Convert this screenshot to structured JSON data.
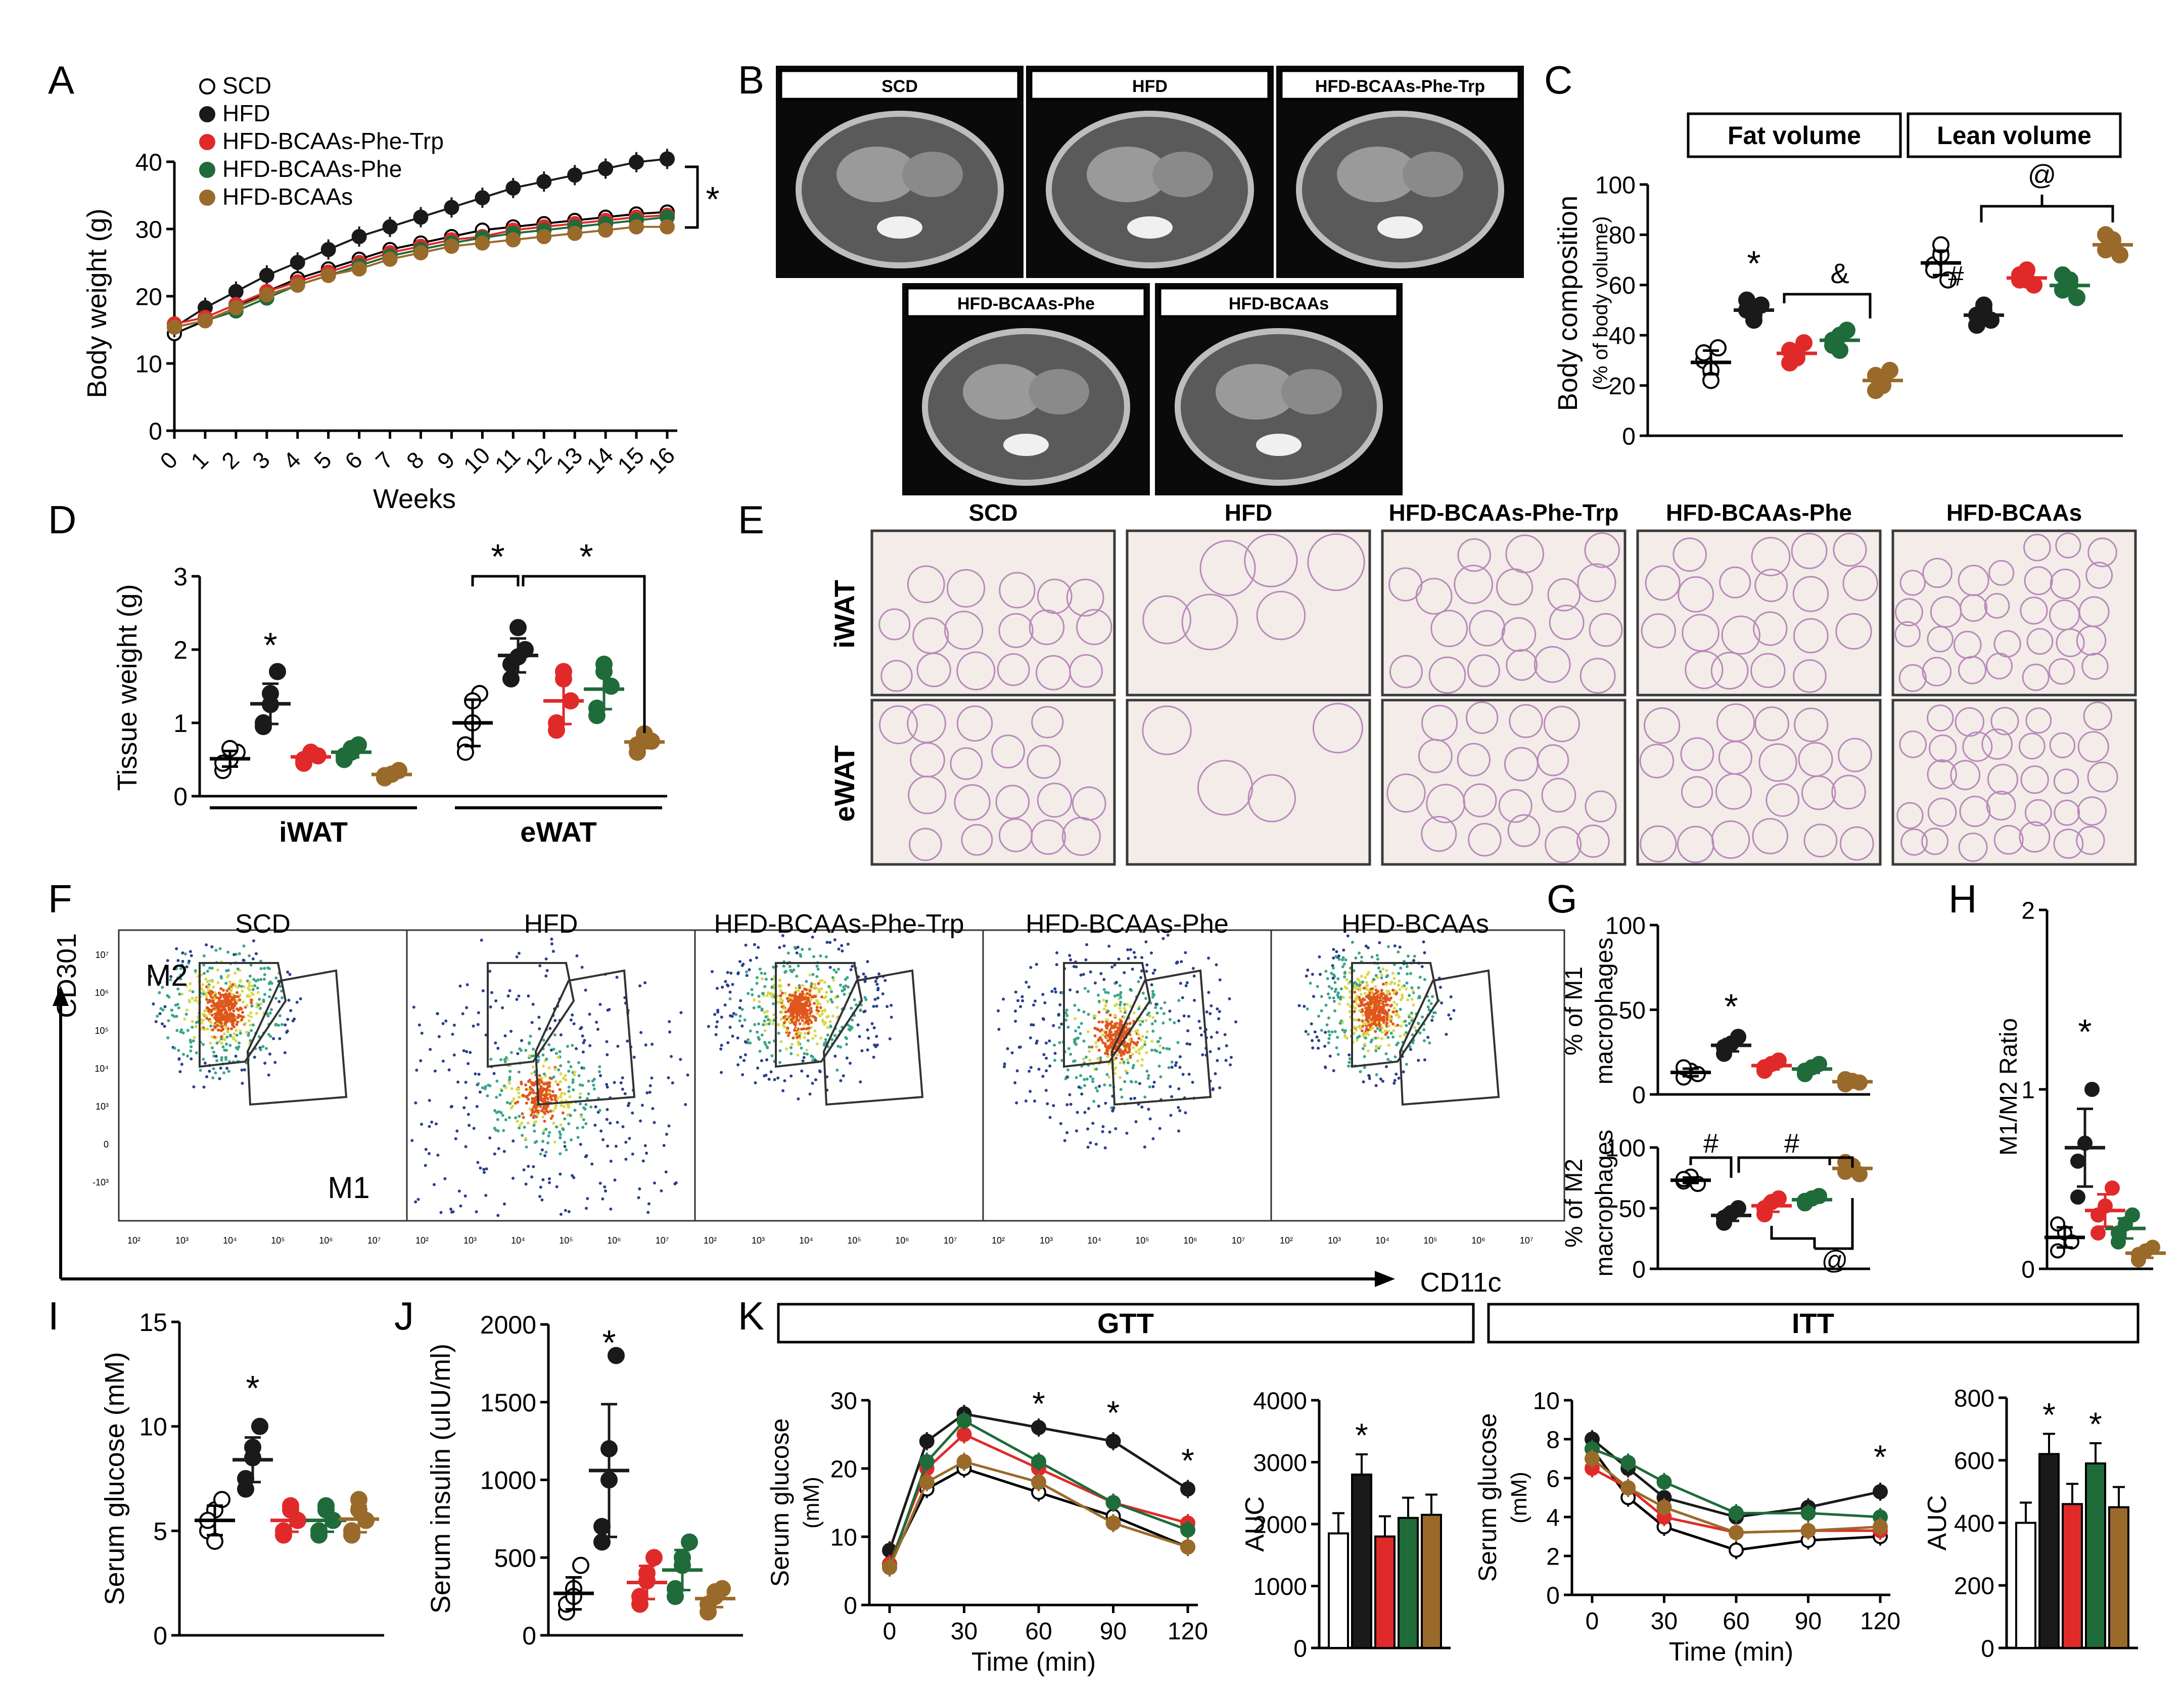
{
  "colors": {
    "SCD": "#ffffff",
    "HFD": "#1a1a1a",
    "PheTrp": "#e02a2a",
    "Phe": "#1f6b3a",
    "BCAAs": "#9a6a2a"
  },
  "panels": {
    "A": {
      "letter": "A",
      "ylabel": "Body weight (g)",
      "xlabel": "Weeks",
      "legend": [
        "SCD",
        "HFD",
        "HFD-BCAAs-Phe-Trp",
        "HFD-BCAAs-Phe",
        "HFD-BCAAs"
      ],
      "sig": "*"
    },
    "B": {
      "letter": "B",
      "labels": [
        "SCD",
        "HFD",
        "HFD-BCAAs-Phe-Trp",
        "HFD-BCAAs-Phe",
        "HFD-BCAAs"
      ]
    },
    "C": {
      "letter": "C",
      "ylabel": "Body composition",
      "ylabel2": "(% of body volume)",
      "boxes": [
        "Fat volume",
        "Lean volume"
      ],
      "marks": [
        "*",
        "&",
        "#",
        "@"
      ]
    },
    "D": {
      "letter": "D",
      "ylabel": "Tissue weight (g)",
      "groups": [
        "iWAT",
        "eWAT"
      ],
      "marks": [
        "*",
        "*",
        "*"
      ]
    },
    "E": {
      "letter": "E",
      "cols": [
        "SCD",
        "HFD",
        "HFD-BCAAs-Phe-Trp",
        "HFD-BCAAs-Phe",
        "HFD-BCAAs"
      ],
      "rows": [
        "iWAT",
        "eWAT"
      ]
    },
    "F": {
      "letter": "F",
      "titles": [
        "SCD",
        "HFD",
        "HFD-BCAAs-Phe-Trp",
        "HFD-BCAAs-Phe",
        "HFD-BCAAs"
      ],
      "yaxis": "CD301",
      "xaxis": "CD11c",
      "gate_m2": "M2",
      "gate_m1": "M1",
      "yticks": [
        "10⁷",
        "10⁶",
        "10⁵",
        "10⁴",
        "10³",
        "0",
        "-10³"
      ],
      "xticks": [
        "10²",
        "10³",
        "10⁴",
        "10⁵",
        "10⁶",
        "10⁷"
      ]
    },
    "G": {
      "letter": "G",
      "ylabel_top": "% of M1",
      "ylabel_top2": "macrophages",
      "ylabel_bot": "% of M2",
      "ylabel_bot2": "macrophages",
      "marks": [
        "*",
        "#",
        "#",
        "@"
      ]
    },
    "H": {
      "letter": "H",
      "ylabel": "M1/M2 Ratio",
      "mark": "*"
    },
    "I": {
      "letter": "I",
      "ylabel": "Serum glucose (mM)",
      "mark": "*"
    },
    "J": {
      "letter": "J",
      "ylabel": "Serum insulin (uIU/ml)",
      "mark": "*"
    },
    "K": {
      "letter": "K",
      "box_gtt": "GTT",
      "box_itt": "ITT",
      "ylabel": "Serum glucose",
      "ylabel2": "(mM)",
      "xlabel": "Time (min)",
      "auc": "AUC",
      "mark": "*"
    }
  },
  "chart_data": [
    {
      "id": "A",
      "type": "line",
      "title": "",
      "xlabel": "Weeks",
      "ylabel": "Body weight (g)",
      "xlim": [
        0,
        16
      ],
      "ylim": [
        0,
        40
      ],
      "x": [
        0,
        1,
        2,
        3,
        4,
        5,
        6,
        7,
        8,
        9,
        10,
        11,
        12,
        13,
        14,
        15,
        16
      ],
      "xticks": [
        "0",
        "1",
        "2",
        "3",
        "4",
        "5",
        "6",
        "7",
        "8",
        "9",
        "10",
        "11",
        "12",
        "13",
        "14",
        "15",
        "16"
      ],
      "yticks": [
        0,
        10,
        20,
        30,
        40
      ],
      "series": [
        {
          "name": "SCD",
          "values": [
            15,
            17,
            19,
            21.5,
            23.5,
            25,
            26.5,
            28,
            29,
            30,
            31,
            31.5,
            32,
            32.5,
            33,
            33.5,
            33.8
          ]
        },
        {
          "name": "HFD",
          "values": [
            16,
            19,
            21.5,
            24,
            26,
            28,
            30,
            31.5,
            33,
            34.5,
            36,
            37.5,
            38.5,
            39.5,
            40.5,
            41.5,
            42
          ]
        },
        {
          "name": "HFD-BCAAs-Phe-Trp",
          "values": [
            16.5,
            17.5,
            19.5,
            21.5,
            23,
            24.5,
            26,
            27.5,
            28.5,
            29.5,
            30,
            31,
            31.5,
            32,
            32.5,
            33,
            33.3
          ]
        },
        {
          "name": "HFD-BCAAs-Phe",
          "values": [
            16,
            17,
            18.5,
            20.5,
            22.5,
            24,
            25.5,
            27,
            28,
            29,
            29.8,
            30.5,
            31,
            31.5,
            32,
            32.5,
            33
          ]
        },
        {
          "name": "HFD-BCAAs",
          "values": [
            16,
            17,
            19,
            21,
            22.5,
            24,
            25,
            26.5,
            27.5,
            28.5,
            29,
            29.5,
            30,
            30.5,
            31,
            31.5,
            31.5
          ]
        }
      ]
    },
    {
      "id": "C",
      "type": "scatter",
      "ylabel": "Body composition (% of body volume)",
      "ylim": [
        0,
        100
      ],
      "yticks": [
        0,
        20,
        40,
        60,
        80,
        100
      ],
      "groups": [
        "Fat volume",
        "Lean volume"
      ],
      "series": [
        {
          "name": "SCD",
          "fat": [
            30,
            26,
            35,
            33,
            22
          ],
          "lean": [
            68,
            72,
            62,
            66,
            76
          ]
        },
        {
          "name": "HFD",
          "fat": [
            50,
            46,
            52,
            54,
            48
          ],
          "lean": [
            48,
            52,
            46,
            44,
            50
          ]
        },
        {
          "name": "HFD-BCAAs-Phe-Trp",
          "fat": [
            34,
            31,
            37,
            29,
            33
          ],
          "lean": [
            62,
            66,
            60,
            64,
            62
          ]
        },
        {
          "name": "HFD-BCAAs-Phe",
          "fat": [
            38,
            34,
            42,
            36,
            40
          ],
          "lean": [
            58,
            62,
            55,
            64,
            60
          ]
        },
        {
          "name": "HFD-BCAAs",
          "fat": [
            24,
            20,
            26,
            18,
            22
          ],
          "lean": [
            74,
            78,
            72,
            80,
            76
          ]
        }
      ]
    },
    {
      "id": "D",
      "type": "scatter",
      "ylabel": "Tissue weight (g)",
      "ylim": [
        0,
        3
      ],
      "yticks": [
        0,
        1,
        2,
        3
      ],
      "groups": [
        "iWAT",
        "eWAT"
      ],
      "series": [
        {
          "name": "SCD",
          "iWAT": [
            0.35,
            0.5,
            0.6,
            0.45,
            0.65
          ],
          "eWAT": [
            0.7,
            1.0,
            1.4,
            0.6,
            1.3
          ]
        },
        {
          "name": "HFD",
          "iWAT": [
            1.0,
            1.4,
            1.7,
            0.95,
            1.25
          ],
          "eWAT": [
            1.8,
            2.3,
            2.0,
            1.6,
            1.9
          ]
        },
        {
          "name": "HFD-BCAAs-Phe-Trp",
          "iWAT": [
            0.45,
            0.6,
            0.55,
            0.5,
            0.58
          ],
          "eWAT": [
            0.9,
            1.7,
            1.3,
            1.0,
            1.6
          ]
        },
        {
          "name": "HFD-BCAAs-Phe",
          "iWAT": [
            0.5,
            0.65,
            0.7,
            0.55,
            0.6
          ],
          "eWAT": [
            1.2,
            1.7,
            1.5,
            1.1,
            1.8
          ]
        },
        {
          "name": "HFD-BCAAs",
          "iWAT": [
            0.25,
            0.3,
            0.35,
            0.28,
            0.3
          ],
          "eWAT": [
            0.6,
            0.8,
            0.75,
            0.7,
            0.85
          ]
        }
      ]
    },
    {
      "id": "G-top",
      "type": "scatter",
      "ylabel": "% of M1 macrophages",
      "ylim": [
        0,
        100
      ],
      "yticks": [
        0,
        50,
        100
      ],
      "series": [
        {
          "name": "SCD",
          "values": [
            10,
            14,
            12,
            16
          ]
        },
        {
          "name": "HFD",
          "values": [
            24,
            30,
            34,
            28
          ]
        },
        {
          "name": "HFD-BCAAs-Phe-Trp",
          "values": [
            14,
            18,
            20,
            16
          ]
        },
        {
          "name": "HFD-BCAAs-Phe",
          "values": [
            12,
            16,
            18,
            14
          ]
        },
        {
          "name": "HFD-BCAAs",
          "values": [
            6,
            8,
            7,
            9
          ]
        }
      ]
    },
    {
      "id": "G-bottom",
      "type": "scatter",
      "ylabel": "% of M2 macrophages",
      "ylim": [
        0,
        100
      ],
      "yticks": [
        0,
        50,
        100
      ],
      "series": [
        {
          "name": "SCD",
          "values": [
            72,
            76,
            70,
            74
          ]
        },
        {
          "name": "HFD",
          "values": [
            38,
            46,
            50,
            42
          ]
        },
        {
          "name": "HFD-BCAAs-Phe-Trp",
          "values": [
            45,
            55,
            58,
            50
          ]
        },
        {
          "name": "HFD-BCAAs-Phe",
          "values": [
            54,
            58,
            60,
            56
          ]
        },
        {
          "name": "HFD-BCAAs",
          "values": [
            80,
            85,
            78,
            88
          ]
        }
      ]
    },
    {
      "id": "H",
      "type": "scatter",
      "ylabel": "M1/M2 Ratio",
      "ylim": [
        0,
        2
      ],
      "yticks": [
        0,
        1,
        2
      ],
      "series": [
        {
          "name": "SCD",
          "values": [
            0.1,
            0.2,
            0.15,
            0.25
          ]
        },
        {
          "name": "HFD",
          "values": [
            0.4,
            0.7,
            1.0,
            0.6
          ]
        },
        {
          "name": "HFD-BCAAs-Phe-Trp",
          "values": [
            0.2,
            0.35,
            0.45,
            0.3
          ]
        },
        {
          "name": "HFD-BCAAs-Phe",
          "values": [
            0.15,
            0.25,
            0.3,
            0.2
          ]
        },
        {
          "name": "HFD-BCAAs",
          "values": [
            0.05,
            0.1,
            0.12,
            0.08
          ]
        }
      ]
    },
    {
      "id": "I",
      "type": "scatter",
      "ylabel": "Serum glucose (mM)",
      "ylim": [
        0,
        15
      ],
      "yticks": [
        0,
        5,
        10,
        15
      ],
      "series": [
        {
          "name": "SCD",
          "values": [
            5,
            6,
            6.5,
            5.5,
            4.5
          ]
        },
        {
          "name": "HFD",
          "values": [
            7,
            8.5,
            10,
            7.5,
            9
          ]
        },
        {
          "name": "HFD-BCAAs-Phe-Trp",
          "values": [
            5,
            6,
            5.5,
            4.8,
            6.2
          ]
        },
        {
          "name": "HFD-BCAAs-Phe",
          "values": [
            4.8,
            6,
            5.5,
            5,
            6.2
          ]
        },
        {
          "name": "HFD-BCAAs",
          "values": [
            5,
            6.5,
            5.5,
            4.8,
            6
          ]
        }
      ]
    },
    {
      "id": "J",
      "type": "scatter",
      "ylabel": "Serum insulin (uIU/ml)",
      "ylim": [
        0,
        2000
      ],
      "yticks": [
        0,
        500,
        1000,
        1500,
        2000
      ],
      "series": [
        {
          "name": "SCD",
          "values": [
            150,
            300,
            450,
            200,
            250
          ]
        },
        {
          "name": "HFD",
          "values": [
            600,
            1000,
            1800,
            700,
            1200
          ]
        },
        {
          "name": "HFD-BCAAs-Phe-Trp",
          "values": [
            200,
            350,
            500,
            250,
            400
          ]
        },
        {
          "name": "HFD-BCAAs-Phe",
          "values": [
            250,
            450,
            600,
            300,
            500
          ]
        },
        {
          "name": "HFD-BCAAs",
          "values": [
            150,
            250,
            300,
            200,
            280
          ]
        }
      ]
    },
    {
      "id": "K-GTT",
      "type": "line",
      "xlabel": "Time (min)",
      "ylabel": "Serum glucose (mM)",
      "xlim": [
        0,
        120
      ],
      "ylim": [
        0,
        30
      ],
      "yticks": [
        0,
        10,
        20,
        30
      ],
      "xticks": [
        0,
        30,
        60,
        90,
        120
      ],
      "x": [
        0,
        15,
        30,
        60,
        90,
        120
      ],
      "series": [
        {
          "name": "SCD",
          "values": [
            6,
            17,
            20,
            16.5,
            13,
            8.5
          ]
        },
        {
          "name": "HFD",
          "values": [
            8,
            24,
            28,
            26,
            24,
            17
          ]
        },
        {
          "name": "HFD-BCAAs-Phe-Trp",
          "values": [
            6,
            20,
            25,
            20,
            15,
            12
          ]
        },
        {
          "name": "HFD-BCAAs-Phe",
          "values": [
            5.5,
            21,
            27,
            21,
            15,
            11
          ]
        },
        {
          "name": "HFD-BCAAs",
          "values": [
            5.5,
            18,
            21,
            18,
            12,
            8.5
          ]
        }
      ]
    },
    {
      "id": "K-GTT-AUC",
      "type": "bar",
      "ylabel": "AUC",
      "ylim": [
        0,
        4000
      ],
      "yticks": [
        0,
        1000,
        2000,
        3000,
        4000
      ],
      "categories": [
        "SCD",
        "HFD",
        "HFD-BCAAs-Phe-Trp",
        "HFD-BCAAs-Phe",
        "HFD-BCAAs"
      ],
      "values": [
        1850,
        2800,
        1800,
        2100,
        2150
      ]
    },
    {
      "id": "K-ITT",
      "type": "line",
      "xlabel": "Time (min)",
      "ylabel": "Serum glucose (mM)",
      "xlim": [
        0,
        120
      ],
      "ylim": [
        0,
        10
      ],
      "yticks": [
        0,
        2,
        4,
        6,
        8,
        10
      ],
      "xticks": [
        0,
        30,
        60,
        90,
        120
      ],
      "x": [
        0,
        15,
        30,
        60,
        90,
        120
      ],
      "series": [
        {
          "name": "SCD",
          "values": [
            7.5,
            5,
            3.5,
            2.3,
            2.8,
            3
          ]
        },
        {
          "name": "HFD",
          "values": [
            8,
            6.5,
            5,
            4,
            4.5,
            5.3
          ]
        },
        {
          "name": "HFD-BCAAs-Phe-Trp",
          "values": [
            6.5,
            5.5,
            4,
            3.2,
            3.3,
            3.3
          ]
        },
        {
          "name": "HFD-BCAAs-Phe",
          "values": [
            7.5,
            6.8,
            5.8,
            4.2,
            4.2,
            4
          ]
        },
        {
          "name": "HFD-BCAAs",
          "values": [
            7,
            5.5,
            4.5,
            3.2,
            3.3,
            3.5
          ]
        }
      ]
    },
    {
      "id": "K-ITT-AUC",
      "type": "bar",
      "ylabel": "AUC",
      "ylim": [
        0,
        800
      ],
      "yticks": [
        0,
        200,
        400,
        600,
        800
      ],
      "categories": [
        "SCD",
        "HFD",
        "HFD-BCAAs-Phe-Trp",
        "HFD-BCAAs-Phe",
        "HFD-BCAAs"
      ],
      "values": [
        400,
        620,
        460,
        590,
        450
      ]
    }
  ]
}
